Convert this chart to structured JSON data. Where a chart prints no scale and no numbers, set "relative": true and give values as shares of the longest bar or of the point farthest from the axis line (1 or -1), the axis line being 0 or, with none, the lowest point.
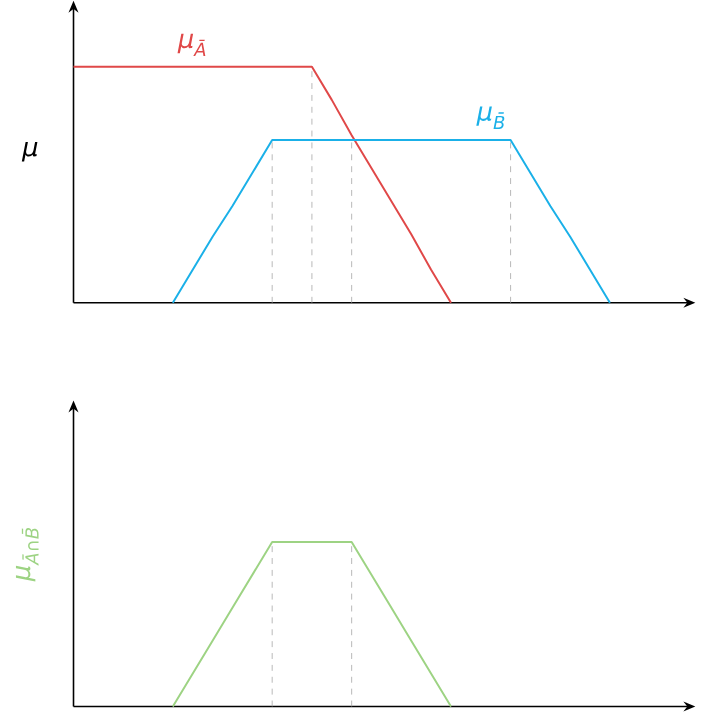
{
  "chart_data": [
    {
      "type": "line",
      "ylabel": "μ",
      "relative": true,
      "categories": [
        null,
        null,
        null,
        null,
        null,
        null,
        null,
        null,
        null,
        null,
        null,
        null,
        null,
        null,
        null,
        null,
        null,
        null,
        null,
        null,
        null,
        null,
        null,
        null,
        null,
        null,
        null,
        null,
        null,
        null,
        null,
        null
      ],
      "series": [
        {
          "name": "μ$_{Ā}$",
          "color": "#e04848",
          "values": [
            1,
            1,
            1,
            1,
            1,
            1,
            1,
            1,
            1,
            1,
            1,
            1,
            1,
            0.86,
            0.71,
            0.57,
            0.43,
            0.29,
            0.14,
            0,
            null,
            null,
            null,
            null,
            null,
            null,
            null,
            null,
            null,
            null,
            null,
            null
          ]
        },
        {
          "name": "μ$_{B̄}$",
          "color": "#1ab0e8",
          "values": [
            null,
            null,
            null,
            null,
            null,
            0,
            0.14,
            0.28,
            0.41,
            0.55,
            0.69,
            0.69,
            0.69,
            0.69,
            0.69,
            0.69,
            0.69,
            0.69,
            0.69,
            0.69,
            0.69,
            0.69,
            0.69,
            0.55,
            0.41,
            0.28,
            0.14,
            0,
            null,
            null,
            null,
            null
          ]
        }
      ]
    },
    {
      "type": "line",
      "ylabel": "μ$_{Ā∩B̄}$",
      "relative": true,
      "categories": [
        null,
        null,
        null,
        null,
        null,
        null,
        null,
        null,
        null,
        null,
        null,
        null,
        null,
        null,
        null,
        null,
        null,
        null,
        null,
        null,
        null,
        null,
        null,
        null,
        null,
        null,
        null,
        null,
        null,
        null,
        null,
        null
      ],
      "series": [
        {
          "color": "#9dd383",
          "values": [
            null,
            null,
            null,
            null,
            null,
            0,
            0.2,
            0.4,
            0.6,
            0.8,
            1,
            1,
            1,
            1,
            1,
            0.8,
            0.6,
            0.4,
            0.2,
            0,
            null,
            null,
            null,
            null,
            null,
            null,
            null,
            null,
            null,
            null,
            null,
            null
          ]
        }
      ]
    }
  ]
}
